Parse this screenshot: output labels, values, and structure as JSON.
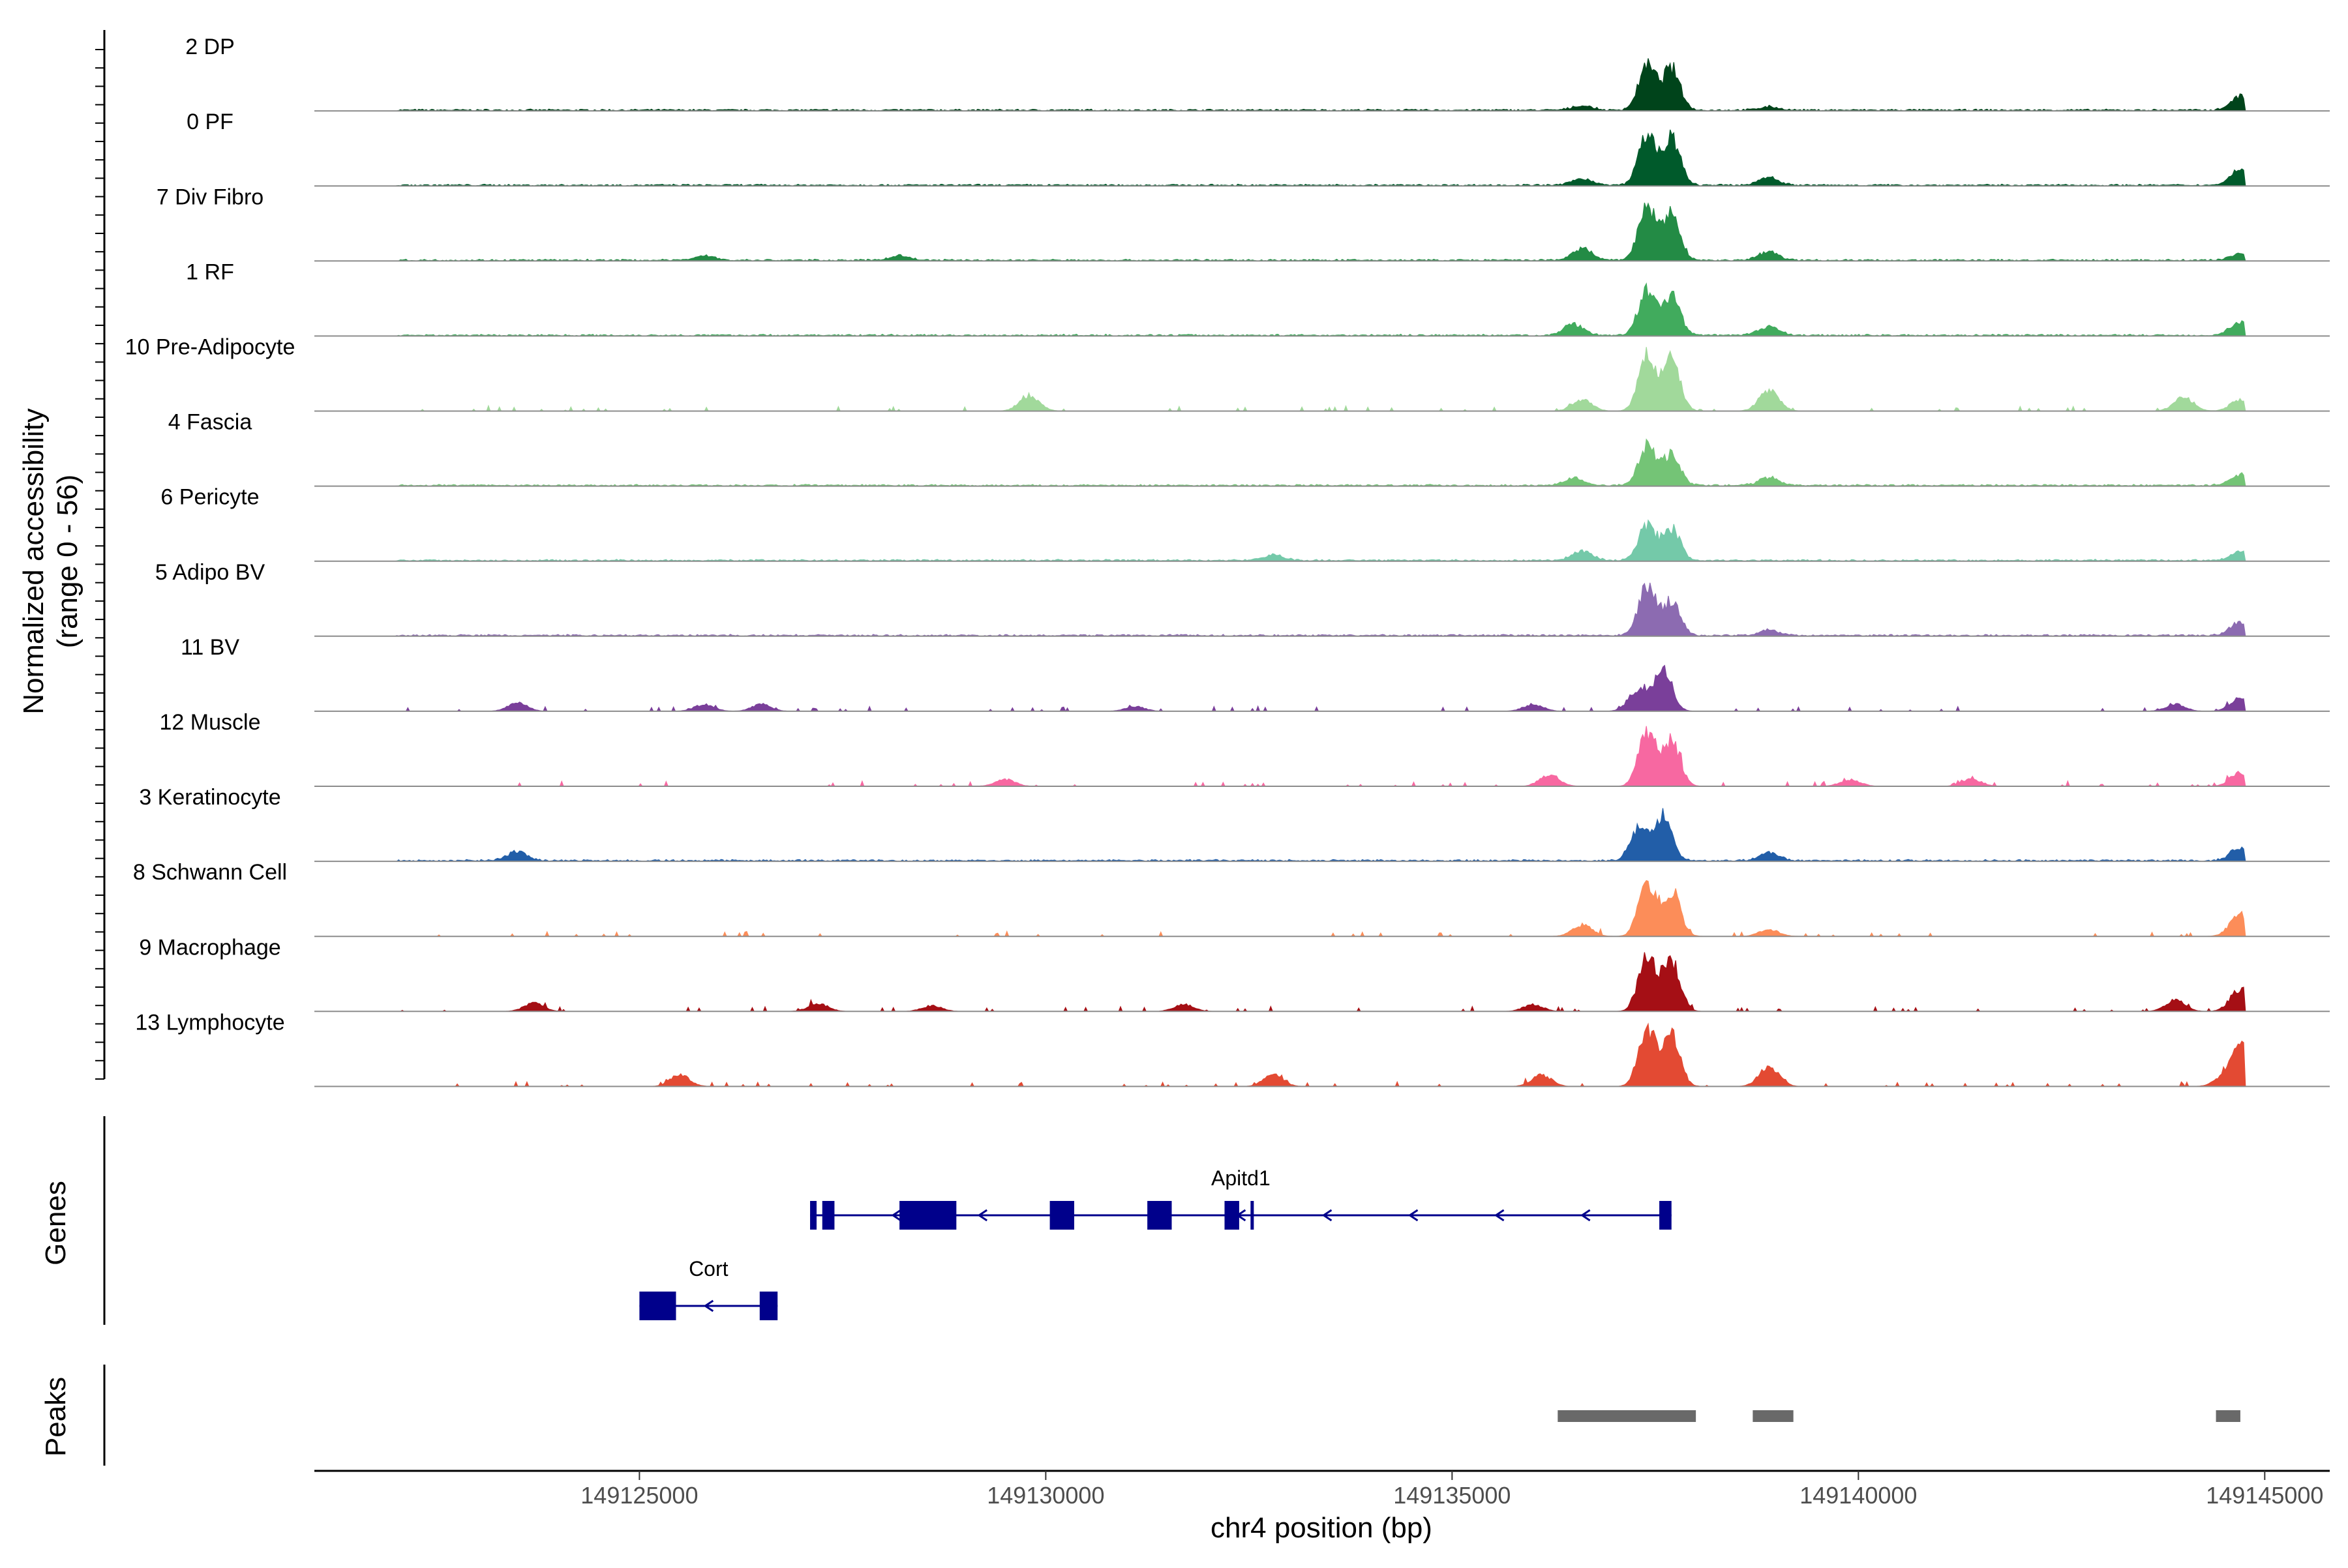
{
  "chart_data": {
    "type": "area",
    "title": "",
    "chromosome": "chr4",
    "xlabel": "chr4 position (bp)",
    "ylabel": "Normalized accessibility",
    "ylabel_range": "(range 0 - 56)",
    "xlim": [
      149121000,
      149145800
    ],
    "ylim": [
      0,
      56
    ],
    "x_ticks": [
      149125000,
      149130000,
      149135000,
      149140000,
      149145000
    ],
    "x_tick_labels": [
      "149125000",
      "149130000",
      "149135000",
      "149140000",
      "149145000"
    ],
    "series": [
      {
        "name": "2 DP",
        "color": "#00441b",
        "profile": "dense",
        "peaks": [
          [
            149137400,
            38
          ],
          [
            149137700,
            36
          ],
          [
            149136600,
            4
          ],
          [
            149138900,
            3
          ],
          [
            149144700,
            12
          ]
        ]
      },
      {
        "name": "0 PF",
        "color": "#005a2b",
        "profile": "dense",
        "peaks": [
          [
            149137400,
            44
          ],
          [
            149137700,
            40
          ],
          [
            149136600,
            6
          ],
          [
            149138900,
            7
          ],
          [
            149144700,
            14
          ]
        ]
      },
      {
        "name": "7 Div Fibro",
        "color": "#238b45",
        "profile": "dense",
        "peaks": [
          [
            149137400,
            46
          ],
          [
            149137700,
            40
          ],
          [
            149136600,
            10
          ],
          [
            149138900,
            8
          ],
          [
            149144700,
            6
          ],
          [
            149125800,
            4
          ],
          [
            149128200,
            4
          ]
        ]
      },
      {
        "name": "1 RF",
        "color": "#41ab5d",
        "profile": "dense",
        "peaks": [
          [
            149137400,
            38
          ],
          [
            149137700,
            34
          ],
          [
            149136500,
            10
          ],
          [
            149138900,
            8
          ],
          [
            149144700,
            12
          ]
        ]
      },
      {
        "name": "10 Pre-Adipocyte",
        "color": "#a1d99b",
        "profile": "sparse",
        "peaks": [
          [
            149137400,
            48
          ],
          [
            149137700,
            44
          ],
          [
            149129800,
            14
          ],
          [
            149138900,
            18
          ],
          [
            149144000,
            12
          ],
          [
            149136600,
            10
          ],
          [
            149144700,
            10
          ]
        ]
      },
      {
        "name": "4 Fascia",
        "color": "#74c476",
        "profile": "dense",
        "peaks": [
          [
            149137400,
            34
          ],
          [
            149137700,
            26
          ],
          [
            149136500,
            6
          ],
          [
            149138900,
            7
          ],
          [
            149144700,
            10
          ]
        ]
      },
      {
        "name": "6 Pericyte",
        "color": "#74c9a9",
        "profile": "dense",
        "peaks": [
          [
            149137400,
            30
          ],
          [
            149137700,
            28
          ],
          [
            149136600,
            8
          ],
          [
            149132800,
            5
          ],
          [
            149144700,
            7
          ]
        ]
      },
      {
        "name": "5 Adipo BV",
        "color": "#8c6bb1",
        "profile": "dense",
        "peaks": [
          [
            149137400,
            42
          ],
          [
            149137700,
            30
          ],
          [
            149138900,
            5
          ],
          [
            149144700,
            12
          ]
        ]
      },
      {
        "name": "11 BV",
        "color": "#7a3f9a",
        "profile": "sparse",
        "peaks": [
          [
            149137600,
            38
          ],
          [
            149137300,
            20
          ],
          [
            149123500,
            7
          ],
          [
            149125800,
            6
          ],
          [
            149126500,
            6
          ],
          [
            149131100,
            4
          ],
          [
            149136000,
            6
          ],
          [
            149144700,
            12
          ],
          [
            149143900,
            6
          ]
        ]
      },
      {
        "name": "12 Muscle",
        "color": "#f768a1",
        "profile": "sparse",
        "peaks": [
          [
            149137400,
            46
          ],
          [
            149137700,
            40
          ],
          [
            149136200,
            10
          ],
          [
            149139900,
            6
          ],
          [
            149141400,
            6
          ],
          [
            149129500,
            6
          ],
          [
            149144700,
            12
          ]
        ]
      },
      {
        "name": "3 Keratinocyte",
        "color": "#225ea8",
        "profile": "dense",
        "peaks": [
          [
            149137600,
            40
          ],
          [
            149137300,
            28
          ],
          [
            149123500,
            8
          ],
          [
            149138900,
            7
          ],
          [
            149144700,
            12
          ]
        ]
      },
      {
        "name": "8 Schwann Cell",
        "color": "#fc8d59",
        "profile": "sparse",
        "peaks": [
          [
            149137400,
            46
          ],
          [
            149137700,
            40
          ],
          [
            149136600,
            10
          ],
          [
            149138900,
            6
          ],
          [
            149144700,
            20
          ]
        ]
      },
      {
        "name": "9 Macrophage",
        "color": "#a50f15",
        "profile": "sparse",
        "peaks": [
          [
            149137400,
            48
          ],
          [
            149137700,
            44
          ],
          [
            149123700,
            7
          ],
          [
            149127200,
            7
          ],
          [
            149128600,
            5
          ],
          [
            149131700,
            6
          ],
          [
            149136000,
            6
          ],
          [
            149143900,
            10
          ],
          [
            149144700,
            20
          ]
        ]
      },
      {
        "name": "13 Lymphocyte",
        "color": "#e34a33",
        "profile": "sparse",
        "peaks": [
          [
            149137400,
            50
          ],
          [
            149137700,
            44
          ],
          [
            149125500,
            10
          ],
          [
            149132800,
            10
          ],
          [
            149138900,
            18
          ],
          [
            149136100,
            10
          ],
          [
            149144700,
            34
          ],
          [
            149144500,
            8
          ]
        ]
      }
    ],
    "genes": [
      {
        "name": "Apitd1",
        "start": 149127100,
        "end": 149137700,
        "strand": "-",
        "exons": [
          [
            149127100,
            149127180
          ],
          [
            149127250,
            149127400
          ],
          [
            149128200,
            149128900
          ],
          [
            149130050,
            149130350
          ],
          [
            149131250,
            149131550
          ],
          [
            149132200,
            149132380
          ],
          [
            149132520,
            149132560
          ],
          [
            149137550,
            149137700
          ]
        ]
      },
      {
        "name": "Cort",
        "start": 149125000,
        "end": 149126700,
        "strand": "-",
        "exons": [
          [
            149125000,
            149125450
          ],
          [
            149126480,
            149126700
          ]
        ]
      }
    ],
    "gene_color": "#00008b",
    "gene_track_label": "Genes",
    "peaks_track_label": "Peaks",
    "peaks_color": "#696969",
    "peak_regions": [
      [
        149136300,
        149138000
      ],
      [
        149138700,
        149139200
      ],
      [
        149144400,
        149144700
      ]
    ]
  }
}
